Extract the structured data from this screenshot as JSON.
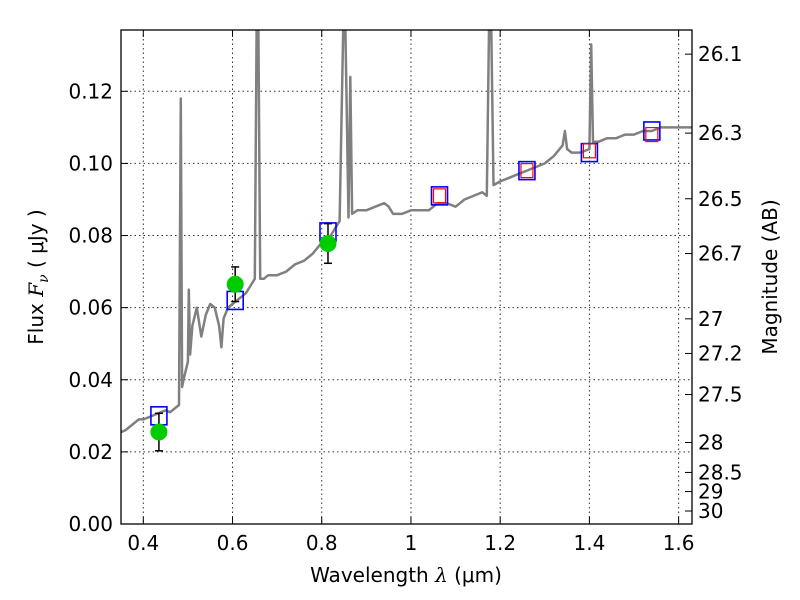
{
  "chart_data": {
    "type": "line",
    "xlabel_prefix": "Wavelength",
    "xlabel_symbol": "λ",
    "xlabel_unit": "(μm)",
    "ylabel_prefix": "Flux",
    "ylabel_symbol": "F",
    "ylabel_symbol_sub": "ν",
    "ylabel_unit": "( μJy )",
    "y2label": "Magnitude (AB)",
    "xlim": [
      0.35,
      1.63
    ],
    "ylim": [
      0.0,
      0.137
    ],
    "xticks": [
      0.4,
      0.6,
      0.8,
      1.0,
      1.2,
      1.4,
      1.6
    ],
    "xtick_labels": [
      "0.4",
      "0.6",
      "0.8",
      "1",
      "1.2",
      "1.4",
      "1.6"
    ],
    "yticks": [
      0.0,
      0.02,
      0.04,
      0.06,
      0.08,
      0.1,
      0.12
    ],
    "ytick_labels": [
      "0.00",
      "0.02",
      "0.04",
      "0.06",
      "0.08",
      "0.10",
      "0.12"
    ],
    "y2ticks": [
      {
        "label": "26.1",
        "flux": 0.1303
      },
      {
        "label": "26.3",
        "flux": 0.1084
      },
      {
        "label": "26.5",
        "flux": 0.0902
      },
      {
        "label": "26.7",
        "flux": 0.075
      },
      {
        "label": "27",
        "flux": 0.0569
      },
      {
        "label": "27.2",
        "flux": 0.0473
      },
      {
        "label": "27.5",
        "flux": 0.0359
      },
      {
        "label": "28",
        "flux": 0.0226
      },
      {
        "label": "28.5",
        "flux": 0.0143
      },
      {
        "label": "29",
        "flux": 0.009
      },
      {
        "label": "30",
        "flux": 0.0036
      }
    ],
    "grid": true,
    "colors": {
      "model": "#808080",
      "photometry": "#00cc00",
      "model_blue": "#0000ff",
      "model_red": "#ff0000",
      "errorbar": "#000000"
    },
    "series": [
      {
        "kind": "spectrum",
        "points": [
          [
            0.35,
            0.0255
          ],
          [
            0.36,
            0.026
          ],
          [
            0.37,
            0.027
          ],
          [
            0.38,
            0.028
          ],
          [
            0.39,
            0.029
          ],
          [
            0.4,
            0.029
          ],
          [
            0.41,
            0.0295
          ],
          [
            0.42,
            0.03
          ],
          [
            0.43,
            0.0305
          ],
          [
            0.44,
            0.031
          ],
          [
            0.45,
            0.0315
          ],
          [
            0.46,
            0.031
          ],
          [
            0.47,
            0.032
          ],
          [
            0.48,
            0.033
          ],
          [
            0.484,
            0.118
          ],
          [
            0.487,
            0.038
          ],
          [
            0.49,
            0.04
          ],
          [
            0.5,
            0.045
          ],
          [
            0.502,
            0.065
          ],
          [
            0.505,
            0.047
          ],
          [
            0.51,
            0.055
          ],
          [
            0.52,
            0.06
          ],
          [
            0.53,
            0.052
          ],
          [
            0.54,
            0.058
          ],
          [
            0.55,
            0.061
          ],
          [
            0.56,
            0.06
          ],
          [
            0.57,
            0.055
          ],
          [
            0.575,
            0.049
          ],
          [
            0.58,
            0.057
          ],
          [
            0.59,
            0.06
          ],
          [
            0.6,
            0.061
          ],
          [
            0.61,
            0.062
          ],
          [
            0.62,
            0.063
          ],
          [
            0.63,
            0.064
          ],
          [
            0.64,
            0.066
          ],
          [
            0.65,
            0.068
          ],
          [
            0.654,
            0.137
          ],
          [
            0.658,
            0.137
          ],
          [
            0.662,
            0.068
          ],
          [
            0.67,
            0.068
          ],
          [
            0.68,
            0.069
          ],
          [
            0.7,
            0.069
          ],
          [
            0.72,
            0.07
          ],
          [
            0.74,
            0.072
          ],
          [
            0.76,
            0.073
          ],
          [
            0.78,
            0.075
          ],
          [
            0.8,
            0.078
          ],
          [
            0.82,
            0.08
          ],
          [
            0.84,
            0.084
          ],
          [
            0.848,
            0.137
          ],
          [
            0.853,
            0.137
          ],
          [
            0.86,
            0.085
          ],
          [
            0.864,
            0.124
          ],
          [
            0.868,
            0.086
          ],
          [
            0.88,
            0.087
          ],
          [
            0.9,
            0.087
          ],
          [
            0.92,
            0.088
          ],
          [
            0.94,
            0.089
          ],
          [
            0.95,
            0.088
          ],
          [
            0.96,
            0.086
          ],
          [
            0.98,
            0.086
          ],
          [
            1.0,
            0.087
          ],
          [
            1.02,
            0.087
          ],
          [
            1.04,
            0.087
          ],
          [
            1.06,
            0.089
          ],
          [
            1.08,
            0.089
          ],
          [
            1.1,
            0.088
          ],
          [
            1.12,
            0.09
          ],
          [
            1.14,
            0.091
          ],
          [
            1.16,
            0.092
          ],
          [
            1.17,
            0.091
          ],
          [
            1.175,
            0.137
          ],
          [
            1.18,
            0.137
          ],
          [
            1.185,
            0.094
          ],
          [
            1.2,
            0.095
          ],
          [
            1.22,
            0.096
          ],
          [
            1.24,
            0.097
          ],
          [
            1.26,
            0.098
          ],
          [
            1.28,
            0.099
          ],
          [
            1.3,
            0.1
          ],
          [
            1.32,
            0.102
          ],
          [
            1.34,
            0.105
          ],
          [
            1.345,
            0.109
          ],
          [
            1.35,
            0.104
          ],
          [
            1.36,
            0.103
          ],
          [
            1.38,
            0.103
          ],
          [
            1.4,
            0.104
          ],
          [
            1.404,
            0.133
          ],
          [
            1.408,
            0.106
          ],
          [
            1.42,
            0.106
          ],
          [
            1.44,
            0.107
          ],
          [
            1.46,
            0.107
          ],
          [
            1.48,
            0.108
          ],
          [
            1.5,
            0.108
          ],
          [
            1.52,
            0.109
          ],
          [
            1.54,
            0.109
          ],
          [
            1.56,
            0.11
          ],
          [
            1.58,
            0.11
          ],
          [
            1.6,
            0.11
          ],
          [
            1.63,
            0.11
          ]
        ]
      },
      {
        "kind": "model_photometry",
        "points": [
          [
            0.435,
            0.03
          ],
          [
            0.606,
            0.062
          ],
          [
            0.814,
            0.081
          ],
          [
            1.064,
            0.091
          ],
          [
            1.26,
            0.098
          ],
          [
            1.4,
            0.103
          ],
          [
            1.54,
            0.109
          ]
        ],
        "red_points": [
          [
            1.064,
            0.091
          ],
          [
            1.26,
            0.098
          ],
          [
            1.4,
            0.1035
          ],
          [
            1.54,
            0.108
          ]
        ]
      },
      {
        "kind": "observed_photometry",
        "points": [
          {
            "x": 0.435,
            "y": 0.0255,
            "err": 0.0052
          },
          {
            "x": 0.606,
            "y": 0.0665,
            "err": 0.0048
          },
          {
            "x": 0.814,
            "y": 0.0778,
            "err": 0.0055
          }
        ]
      }
    ]
  }
}
